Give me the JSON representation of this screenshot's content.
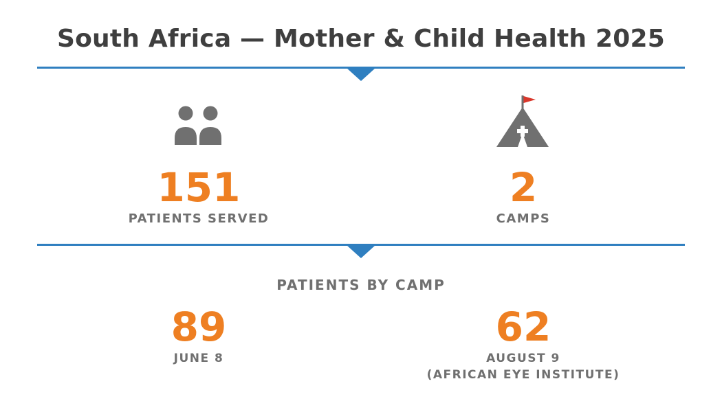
{
  "title": "South Africa — Mother & Child Health 2025",
  "stats": [
    {
      "icon": "people-icon",
      "value": "151",
      "label": "PATIENTS SERVED"
    },
    {
      "icon": "tent-flag-icon",
      "value": "2",
      "label": "CAMPS"
    }
  ],
  "section_label": "PATIENTS BY CAMP",
  "camps": [
    {
      "value": "89",
      "label_line1": "JUNE 8",
      "label_line2": ""
    },
    {
      "value": "62",
      "label_line1": "AUGUST 9",
      "label_line2": "(AFRICAN EYE INSTITUTE)"
    }
  ],
  "colors": {
    "accent_blue": "#2f7fc0",
    "number_orange": "#ee7f22",
    "icon_gray": "#707070",
    "flag_red": "#d9382c",
    "title_gray": "#3f3f3f"
  }
}
